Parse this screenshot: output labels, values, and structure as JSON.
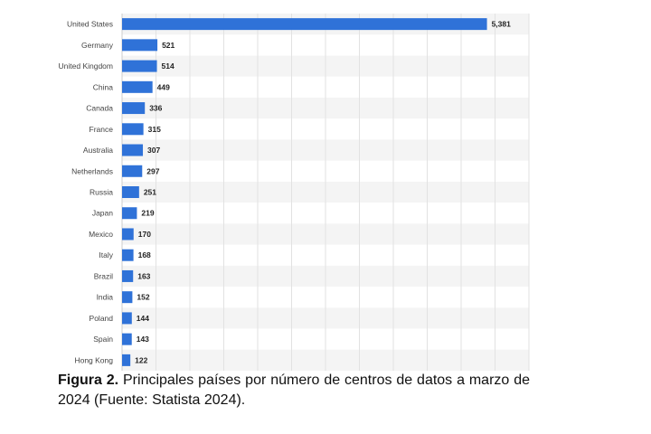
{
  "chart_data": {
    "type": "bar",
    "orientation": "horizontal",
    "categories": [
      "United States",
      "Germany",
      "United Kingdom",
      "China",
      "Canada",
      "France",
      "Australia",
      "Netherlands",
      "Russia",
      "Japan",
      "Mexico",
      "Italy",
      "Brazil",
      "India",
      "Poland",
      "Spain",
      "Hong Kong"
    ],
    "values": [
      5381,
      521,
      514,
      449,
      336,
      315,
      307,
      297,
      251,
      219,
      170,
      168,
      163,
      152,
      144,
      143,
      122
    ],
    "value_labels": [
      "5,381",
      "521",
      "514",
      "449",
      "336",
      "315",
      "307",
      "297",
      "251",
      "219",
      "170",
      "168",
      "163",
      "152",
      "144",
      "143",
      "122"
    ],
    "xlim": [
      0,
      6000
    ],
    "grid": true,
    "bar_color": "#2f72d8",
    "stripe_color": "#f4f4f4"
  },
  "caption": {
    "label": "Figura 2.",
    "text": " Principales países por número de centros de datos a marzo de 2024 (Fuente: Statista 2024)."
  }
}
